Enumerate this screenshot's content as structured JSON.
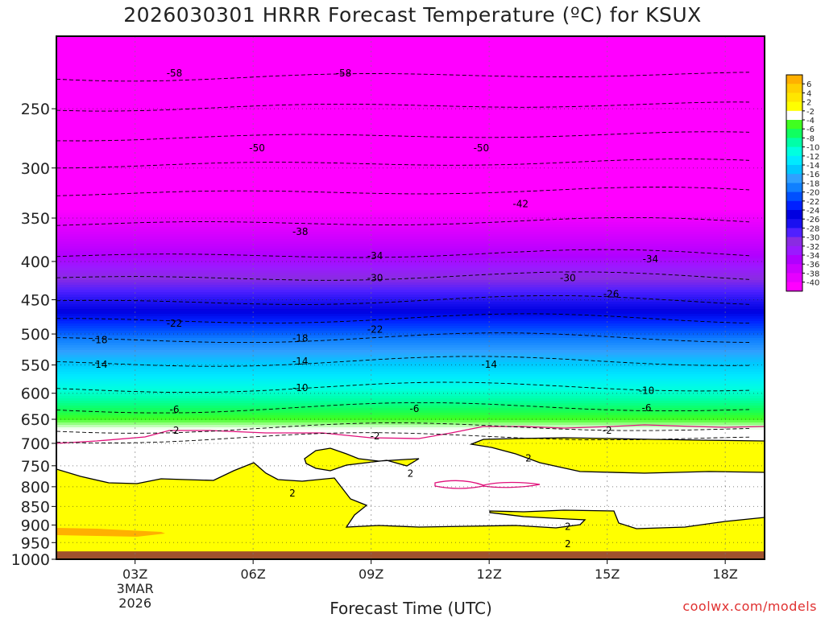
{
  "title": "2026030301 HRRR Forecast Temperature (ºC) for KSUX",
  "credit": "coolwx.com/models",
  "chart_data": {
    "type": "heatmap",
    "title": "2026030301 HRRR Forecast Temperature (ºC) for KSUX",
    "xlabel": "Forecast Time (UTC)",
    "ylabel": "",
    "x_ticks": [
      {
        "label": "03Z",
        "date": "3MAR",
        "year": "2026",
        "hour": 3
      },
      {
        "label": "06Z",
        "hour": 6
      },
      {
        "label": "09Z",
        "hour": 9
      },
      {
        "label": "12Z",
        "hour": 12
      },
      {
        "label": "15Z",
        "hour": 15
      },
      {
        "label": "18Z",
        "hour": 18
      }
    ],
    "xlim": [
      1,
      19
    ],
    "y_ticks": [
      250,
      300,
      350,
      400,
      450,
      500,
      550,
      600,
      650,
      700,
      750,
      800,
      850,
      900,
      950,
      1000
    ],
    "ylim": [
      200,
      1000
    ],
    "y_scale": "log-pressure, inverted",
    "grid": true,
    "colorbar": {
      "labels": [
        "6",
        "4",
        "2",
        "-2",
        "-4",
        "-6",
        "-8",
        "-10",
        "-12",
        "-14",
        "-16",
        "-18",
        "-20",
        "-22",
        "-24",
        "-26",
        "-28",
        "-30",
        "-32",
        "-34",
        "-36",
        "-38",
        "-40"
      ]
    },
    "temperature_levels": [
      {
        "t": -58,
        "p": 226
      },
      {
        "t": -54,
        "p": 248
      },
      {
        "t": -50,
        "p": 272
      },
      {
        "t": -46,
        "p": 296
      },
      {
        "t": -42,
        "p": 323
      },
      {
        "t": -38,
        "p": 355
      },
      {
        "t": -34,
        "p": 392
      },
      {
        "t": -30,
        "p": 420
      },
      {
        "t": -26,
        "p": 452
      },
      {
        "t": -22,
        "p": 478
      },
      {
        "t": -18,
        "p": 507
      },
      {
        "t": -14,
        "p": 545
      },
      {
        "t": -10,
        "p": 590
      },
      {
        "t": -6,
        "p": 628
      },
      {
        "t": -2,
        "p": 668
      },
      {
        "t": 2,
        "p": 688
      }
    ],
    "contour_labels": [
      {
        "text": "-58",
        "x": 4.0,
        "p": 224
      },
      {
        "text": "-58",
        "x": 8.3,
        "p": 224
      },
      {
        "text": "-50",
        "x": 6.1,
        "p": 282
      },
      {
        "text": "-50",
        "x": 11.8,
        "p": 282
      },
      {
        "text": "-42",
        "x": 12.8,
        "p": 335
      },
      {
        "text": "-38",
        "x": 7.2,
        "p": 365
      },
      {
        "text": "-34",
        "x": 9.1,
        "p": 393
      },
      {
        "text": "-34",
        "x": 16.1,
        "p": 397
      },
      {
        "text": "-30",
        "x": 9.1,
        "p": 421
      },
      {
        "text": "-30",
        "x": 14.0,
        "p": 421
      },
      {
        "text": "-26",
        "x": 15.1,
        "p": 442
      },
      {
        "text": "-22",
        "x": 4.0,
        "p": 484
      },
      {
        "text": "-22",
        "x": 9.1,
        "p": 493
      },
      {
        "text": "-18",
        "x": 2.1,
        "p": 509
      },
      {
        "text": "-18",
        "x": 7.2,
        "p": 507
      },
      {
        "text": "-14",
        "x": 2.1,
        "p": 549
      },
      {
        "text": "-14",
        "x": 7.2,
        "p": 544
      },
      {
        "text": "-14",
        "x": 12.0,
        "p": 549
      },
      {
        "text": "-10",
        "x": 7.2,
        "p": 590
      },
      {
        "text": "-10",
        "x": 16.0,
        "p": 595
      },
      {
        "text": "-6",
        "x": 4.0,
        "p": 631
      },
      {
        "text": "-6",
        "x": 10.1,
        "p": 629
      },
      {
        "text": "-6",
        "x": 16.0,
        "p": 628
      },
      {
        "text": "-2",
        "x": 4.0,
        "p": 673
      },
      {
        "text": "-2",
        "x": 9.1,
        "p": 685
      },
      {
        "text": "-2",
        "x": 15.0,
        "p": 673
      },
      {
        "text": "2",
        "x": 13.0,
        "p": 733
      },
      {
        "text": "2",
        "x": 10.0,
        "p": 768
      },
      {
        "text": "2",
        "x": 7.0,
        "p": 816
      },
      {
        "text": "2",
        "x": 14.0,
        "p": 905
      },
      {
        "text": "2",
        "x": 14.0,
        "p": 954
      }
    ],
    "regions": [
      {
        "name": "above freezing (2 to 4 °C)",
        "color": "#ffff00"
      },
      {
        "name": "-2 to 2 °C",
        "color": "#ffffff"
      },
      {
        "name": "below ground",
        "color": "#a0522d"
      }
    ]
  }
}
